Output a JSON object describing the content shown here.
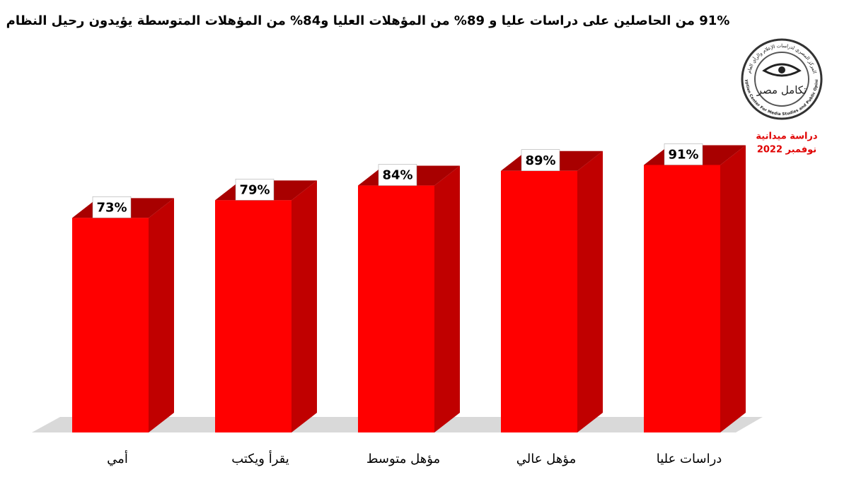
{
  "chart_data": {
    "type": "bar3d",
    "title": "91% من الحاصلين على دراسات عليا و 89% من المؤهلات العليا و84% من المؤهلات المتوسطة يؤيدون رحيل النظام",
    "categories": [
      "أمي",
      "يقرأ ويكتب",
      "مؤهل متوسط",
      "مؤهل عالي",
      "دراسات عليا"
    ],
    "values": [
      73,
      79,
      84,
      89,
      91
    ],
    "value_labels": [
      "73%",
      "79%",
      "84%",
      "89%",
      "91%"
    ],
    "color": "#ff0000",
    "logo": {
      "name": "تكامل مصر",
      "arc_en": "Egyptian Center For Media Studies and Public Opinion",
      "arc_ar": "المركز المصري لدراسات الإعلام والرأي العام",
      "line1": "دراسة ميدانية",
      "line2": "نوفمبر 2022"
    }
  }
}
